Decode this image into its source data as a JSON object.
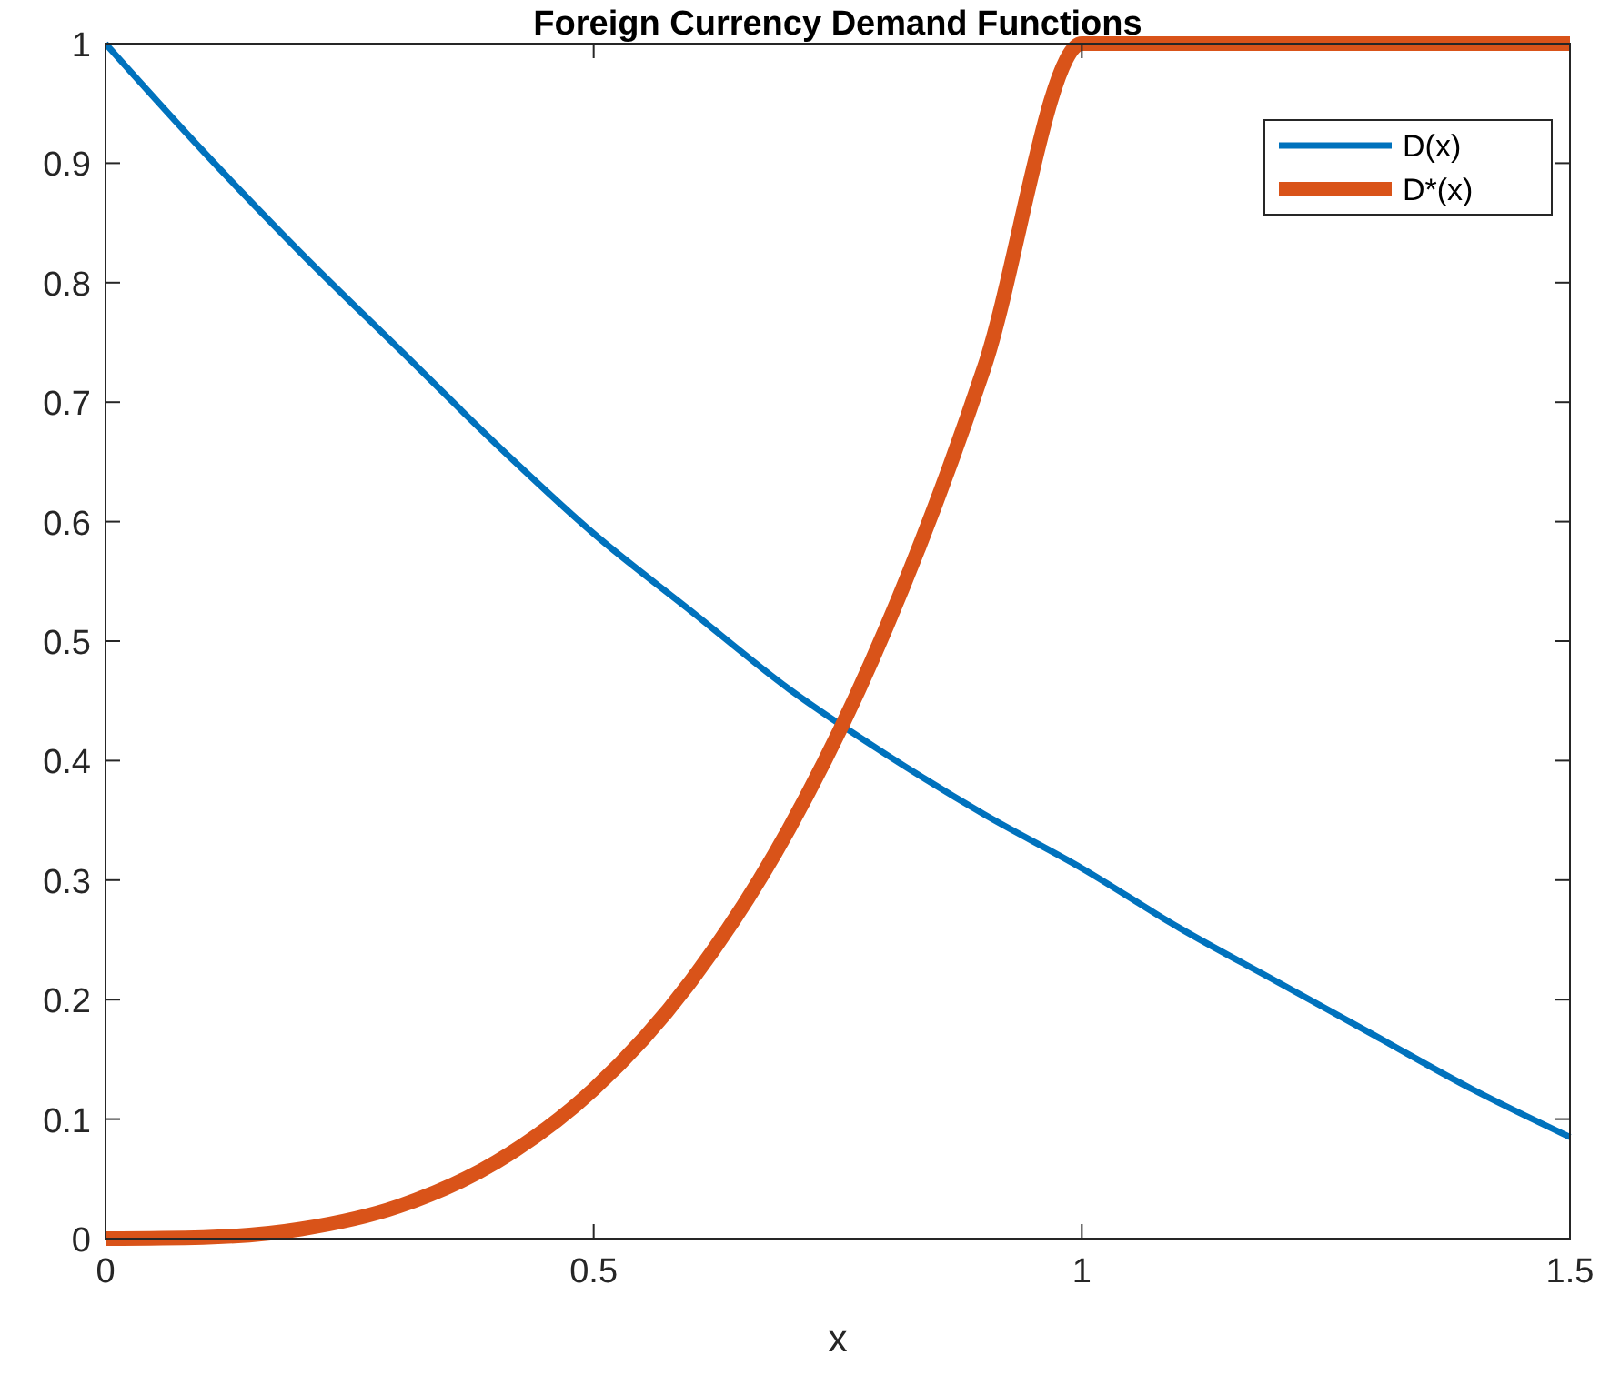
{
  "chart_data": {
    "type": "line",
    "title": "Foreign Currency Demand Functions",
    "xlabel": "x",
    "xlim": [
      0,
      1.5
    ],
    "ylim": [
      0,
      1
    ],
    "xticks": [
      0,
      0.5,
      1,
      1.5
    ],
    "yticks": [
      0,
      0.1,
      0.2,
      0.3,
      0.4,
      0.5,
      0.6,
      0.7,
      0.8,
      0.9,
      1
    ],
    "grid": false,
    "legend": "top right",
    "marker": "none",
    "line_style": "solid",
    "series": [
      {
        "name": "D(x)",
        "color": "#0072bd",
        "x": [
          0,
          0.1,
          0.2,
          0.3,
          0.4,
          0.5,
          0.6,
          0.7,
          0.8,
          0.9,
          1,
          1.1,
          1.2,
          1.3,
          1.4,
          1.5
        ],
        "values": [
          1,
          0.91,
          0.825,
          0.745,
          0.665,
          0.59,
          0.525,
          0.46,
          0.405,
          0.355,
          0.31,
          0.26,
          0.215,
          0.17,
          0.125,
          0.085
        ]
      },
      {
        "name": "D*(x)",
        "color": "#d95319",
        "x": [
          0,
          0.1,
          0.2,
          0.3,
          0.4,
          0.5,
          0.6,
          0.7,
          0.8,
          0.9,
          1,
          1.5
        ],
        "values": [
          0,
          0.001,
          0.008,
          0.027,
          0.064,
          0.125,
          0.216,
          0.343,
          0.512,
          0.729,
          1,
          1
        ]
      }
    ]
  }
}
